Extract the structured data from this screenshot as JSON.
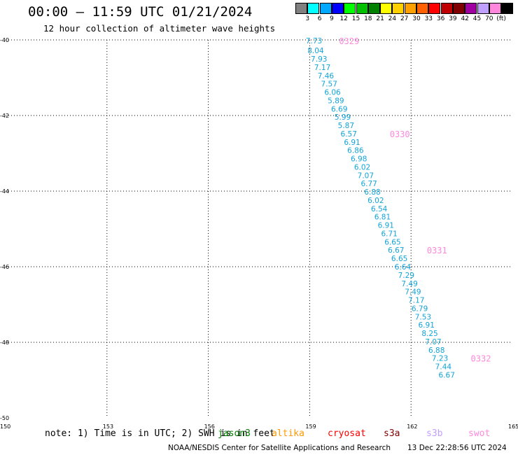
{
  "header": {
    "title": "00:00 – 11:59 UTC 01/21/2024",
    "subtitle": "12 hour collection of altimeter wave heights"
  },
  "legend": {
    "colors": [
      "#808080",
      "#00ffff",
      "#00a8ff",
      "#0000ff",
      "#00ff00",
      "#00c000",
      "#008000",
      "#ffff00",
      "#ffd000",
      "#ffa000",
      "#ff6000",
      "#ff0000",
      "#c00000",
      "#800000",
      "#a000a0",
      "#c0a0ff",
      "#ff88dd",
      "#000000"
    ],
    "labels": [
      "3",
      "6",
      "9",
      "12",
      "15",
      "18",
      "21",
      "24",
      "27",
      "30",
      "33",
      "36",
      "39",
      "42",
      "45",
      "70",
      "(ft)"
    ]
  },
  "axes": {
    "x_ticks": [
      "150",
      "153",
      "156",
      "159",
      "162",
      "165"
    ],
    "y_ticks": [
      "-40",
      "-42",
      "-44",
      "-46",
      "-48",
      "-50"
    ]
  },
  "chart_data": {
    "type": "scatter",
    "xlim": [
      150,
      165
    ],
    "ylim": [
      -50,
      -40
    ],
    "grid": true,
    "points": [
      {
        "lon": 159.05,
        "lat": -40.02,
        "value": "7.73"
      },
      {
        "lon": 159.1,
        "lat": -40.28,
        "value": "8.04"
      },
      {
        "lon": 159.2,
        "lat": -40.5,
        "value": "7.93"
      },
      {
        "lon": 159.3,
        "lat": -40.72,
        "value": "7.17"
      },
      {
        "lon": 159.4,
        "lat": -40.94,
        "value": "7.46"
      },
      {
        "lon": 159.5,
        "lat": -41.16,
        "value": "7.57"
      },
      {
        "lon": 159.6,
        "lat": -41.38,
        "value": "6.06"
      },
      {
        "lon": 159.7,
        "lat": -41.6,
        "value": "5.89"
      },
      {
        "lon": 159.8,
        "lat": -41.82,
        "value": "6.69"
      },
      {
        "lon": 159.9,
        "lat": -42.04,
        "value": "5.99"
      },
      {
        "lon": 160.0,
        "lat": -42.26,
        "value": "5.87"
      },
      {
        "lon": 160.08,
        "lat": -42.48,
        "value": "6.57"
      },
      {
        "lon": 160.18,
        "lat": -42.7,
        "value": "6.91"
      },
      {
        "lon": 160.28,
        "lat": -42.92,
        "value": "6.86"
      },
      {
        "lon": 160.38,
        "lat": -43.14,
        "value": "6.98"
      },
      {
        "lon": 160.48,
        "lat": -43.36,
        "value": "6.02"
      },
      {
        "lon": 160.58,
        "lat": -43.58,
        "value": "7.07"
      },
      {
        "lon": 160.68,
        "lat": -43.8,
        "value": "6.77"
      },
      {
        "lon": 160.78,
        "lat": -44.02,
        "value": "6.88"
      },
      {
        "lon": 160.88,
        "lat": -44.24,
        "value": "6.02"
      },
      {
        "lon": 160.98,
        "lat": -44.46,
        "value": "6.54"
      },
      {
        "lon": 161.08,
        "lat": -44.68,
        "value": "6.81"
      },
      {
        "lon": 161.18,
        "lat": -44.9,
        "value": "6.91"
      },
      {
        "lon": 161.28,
        "lat": -45.12,
        "value": "6.71"
      },
      {
        "lon": 161.38,
        "lat": -45.34,
        "value": "6.65"
      },
      {
        "lon": 161.48,
        "lat": -45.56,
        "value": "6.67"
      },
      {
        "lon": 161.58,
        "lat": -45.78,
        "value": "6.65"
      },
      {
        "lon": 161.68,
        "lat": -46.0,
        "value": "6.64"
      },
      {
        "lon": 161.78,
        "lat": -46.22,
        "value": "7.29"
      },
      {
        "lon": 161.88,
        "lat": -46.44,
        "value": "7.49"
      },
      {
        "lon": 161.98,
        "lat": -46.66,
        "value": "7.49"
      },
      {
        "lon": 162.08,
        "lat": -46.88,
        "value": "7.17"
      },
      {
        "lon": 162.18,
        "lat": -47.1,
        "value": "6.79"
      },
      {
        "lon": 162.28,
        "lat": -47.32,
        "value": "7.53"
      },
      {
        "lon": 162.38,
        "lat": -47.54,
        "value": "6.91"
      },
      {
        "lon": 162.48,
        "lat": -47.76,
        "value": "8.25"
      },
      {
        "lon": 162.58,
        "lat": -47.98,
        "value": "7.07"
      },
      {
        "lon": 162.68,
        "lat": -48.2,
        "value": "6.88"
      },
      {
        "lon": 162.78,
        "lat": -48.42,
        "value": "7.23"
      },
      {
        "lon": 162.88,
        "lat": -48.64,
        "value": "7.44"
      },
      {
        "lon": 162.98,
        "lat": -48.86,
        "value": "6.67"
      }
    ],
    "times": [
      {
        "lon": 160.2,
        "lat": -40.02,
        "label": "0329"
      },
      {
        "lon": 161.7,
        "lat": -42.48,
        "label": "0330"
      },
      {
        "lon": 162.8,
        "lat": -45.56,
        "label": "0331"
      },
      {
        "lon": 164.1,
        "lat": -48.42,
        "label": "0332"
      }
    ]
  },
  "footer": {
    "note": "note: 1) Time is in UTC; 2) SWH is in feet",
    "satellites": [
      {
        "name": "jason3",
        "color": "#008000"
      },
      {
        "name": "altika",
        "color": "#ff9900"
      },
      {
        "name": "cryosat",
        "color": "#ff0000"
      },
      {
        "name": "s3a",
        "color": "#800000"
      },
      {
        "name": "s3b",
        "color": "#c0a0ff"
      },
      {
        "name": "swot",
        "color": "#ff88dd"
      }
    ],
    "credit": "NOAA/NESDIS Center for Satellite Applications and Research",
    "stamp": "13 Dec 22:28:56 UTC 2024"
  }
}
